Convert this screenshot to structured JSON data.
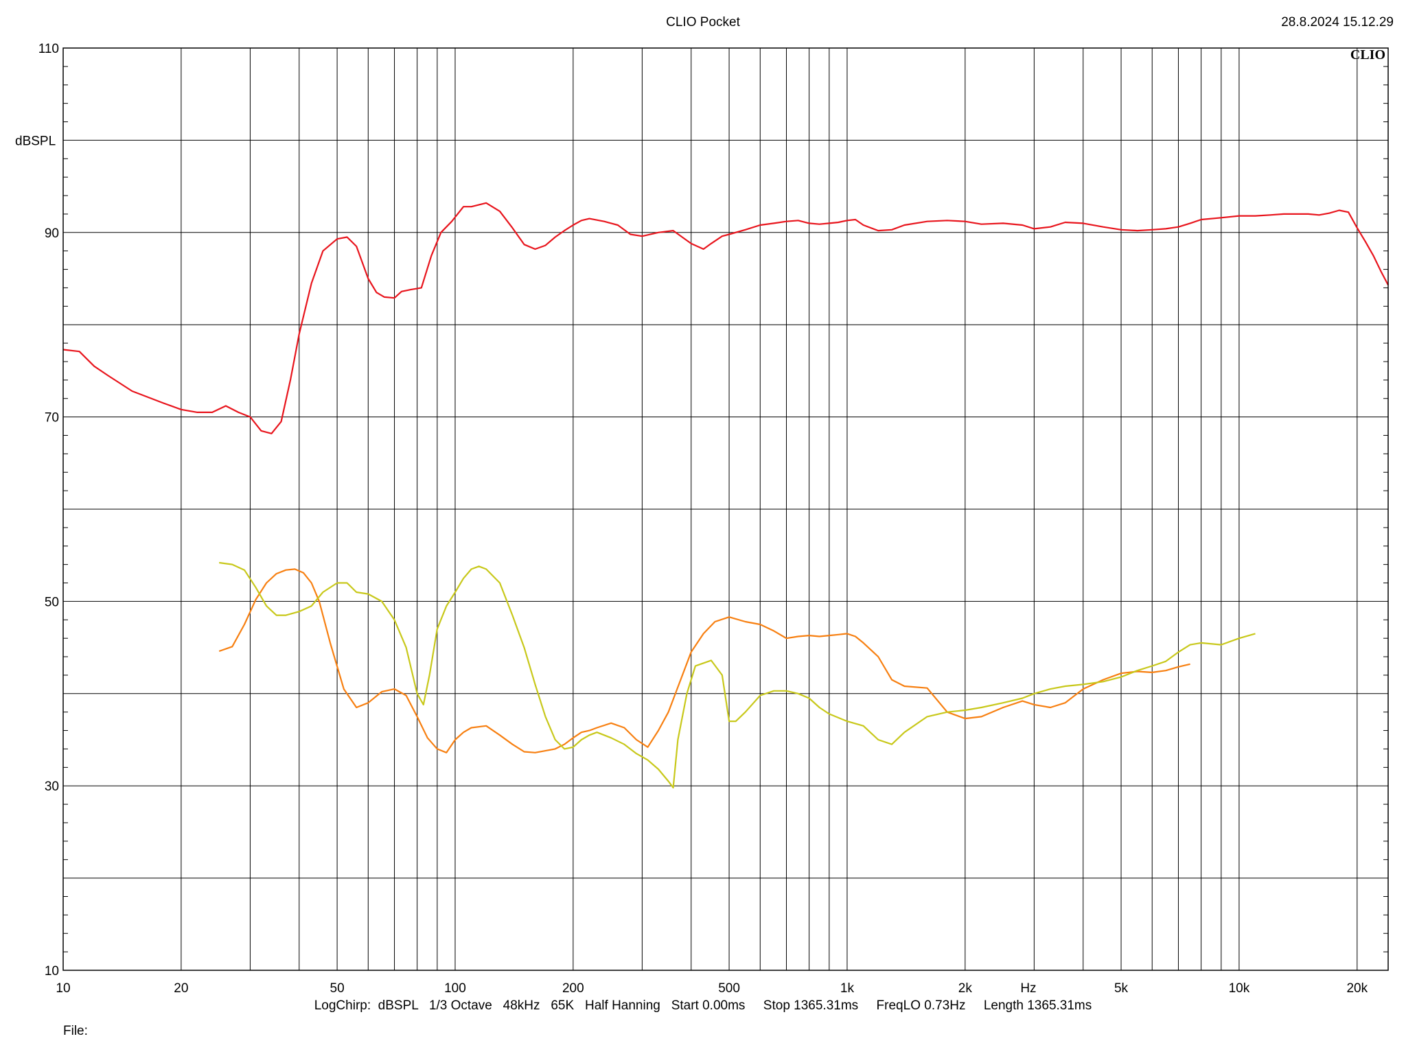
{
  "header": {
    "title": "CLIO Pocket",
    "timestamp": "28.8.2024 15.12.29"
  },
  "footer": {
    "settings": "LogChirp:  dBSPL   1/3 Octave   48kHz   65K   Half Hanning   Start 0.00ms     Stop 1365.31ms     FreqLO 0.73Hz     Length 1365.31ms",
    "file_label": "File:"
  },
  "chart_data": {
    "type": "line",
    "logo": "CLIO",
    "xlabel": "Hz",
    "ylabel": "dBSPL",
    "xscale": "log",
    "xlim": [
      10,
      24000
    ],
    "ylim": [
      10,
      110
    ],
    "xticks": [
      {
        "v": 10,
        "label": "10"
      },
      {
        "v": 20,
        "label": "20"
      },
      {
        "v": 50,
        "label": "50"
      },
      {
        "v": 100,
        "label": "100"
      },
      {
        "v": 200,
        "label": "200"
      },
      {
        "v": 500,
        "label": "500"
      },
      {
        "v": 1000,
        "label": "1k"
      },
      {
        "v": 2000,
        "label": "2k"
      },
      {
        "v": 5000,
        "label": "5k"
      },
      {
        "v": 10000,
        "label": "10k"
      },
      {
        "v": 20000,
        "label": "20k"
      }
    ],
    "yticks": [
      {
        "v": 10,
        "label": "10"
      },
      {
        "v": 30,
        "label": "30"
      },
      {
        "v": 50,
        "label": "50"
      },
      {
        "v": 70,
        "label": "70"
      },
      {
        "v": 90,
        "label": "90"
      },
      {
        "v": 110,
        "label": "110"
      }
    ],
    "grid": true,
    "colors": {
      "red": "#e8141c",
      "orange": "#f77f10",
      "yellow": "#c8c81a"
    },
    "series": [
      {
        "color": "red",
        "x": [
          10,
          11,
          12,
          13,
          15,
          18,
          20,
          22,
          24,
          26,
          28,
          30,
          32,
          34,
          36,
          38,
          40,
          43,
          46,
          50,
          53,
          56,
          60,
          63,
          66,
          70,
          73,
          77,
          82,
          87,
          92,
          98,
          105,
          110,
          120,
          130,
          140,
          150,
          160,
          170,
          180,
          190,
          200,
          210,
          220,
          240,
          260,
          280,
          300,
          330,
          360,
          400,
          430,
          450,
          480,
          500,
          550,
          600,
          650,
          700,
          750,
          800,
          850,
          900,
          950,
          1000,
          1050,
          1100,
          1200,
          1300,
          1400,
          1600,
          1800,
          2000,
          2200,
          2500,
          2800,
          3000,
          3300,
          3600,
          4000,
          4500,
          5000,
          5500,
          6000,
          6500,
          7000,
          7500,
          8000,
          9000,
          10000,
          11000,
          12000,
          13000,
          14000,
          15000,
          16000,
          17000,
          18000,
          19000,
          20000,
          21000,
          22000,
          23000,
          24000
        ],
        "y": [
          77.3,
          77.1,
          75.5,
          74.5,
          72.8,
          71.5,
          70.8,
          70.5,
          70.5,
          71.2,
          70.5,
          70.0,
          68.5,
          68.2,
          69.5,
          74.0,
          79.0,
          84.5,
          88.0,
          89.3,
          89.5,
          88.5,
          85.0,
          83.5,
          83.0,
          82.9,
          83.6,
          83.8,
          84.0,
          87.5,
          90.0,
          91.2,
          92.8,
          92.8,
          93.2,
          92.3,
          90.5,
          88.7,
          88.2,
          88.6,
          89.5,
          90.2,
          90.8,
          91.3,
          91.5,
          91.2,
          90.8,
          89.8,
          89.6,
          90.0,
          90.2,
          88.8,
          88.2,
          88.8,
          89.6,
          89.8,
          90.3,
          90.8,
          91.0,
          91.2,
          91.3,
          91.0,
          90.9,
          91.0,
          91.1,
          91.3,
          91.4,
          90.8,
          90.2,
          90.3,
          90.8,
          91.2,
          91.3,
          91.2,
          90.9,
          91.0,
          90.8,
          90.4,
          90.6,
          91.1,
          91.0,
          90.6,
          90.3,
          90.2,
          90.3,
          90.4,
          90.6,
          91.0,
          91.4,
          91.6,
          91.8,
          91.8,
          91.9,
          92.0,
          92.0,
          92.0,
          91.9,
          92.1,
          92.4,
          92.2,
          90.5,
          89.0,
          87.5,
          85.8,
          84.3
        ]
      },
      {
        "color": "orange",
        "x": [
          25,
          27,
          29,
          31,
          33,
          35,
          37,
          39,
          41,
          43,
          45,
          48,
          52,
          56,
          60,
          65,
          70,
          75,
          80,
          85,
          90,
          95,
          100,
          105,
          110,
          120,
          130,
          140,
          150,
          160,
          170,
          180,
          190,
          200,
          210,
          220,
          230,
          250,
          270,
          290,
          310,
          330,
          350,
          380,
          400,
          430,
          460,
          500,
          550,
          600,
          650,
          700,
          750,
          800,
          850,
          900,
          950,
          1000,
          1050,
          1100,
          1200,
          1300,
          1400,
          1600,
          1800,
          2000,
          2200,
          2500,
          2800,
          3000,
          3300,
          3600,
          4000,
          4500,
          5000,
          5500,
          6000,
          6500,
          7000,
          7500
        ],
        "y": [
          44.6,
          45.1,
          47.5,
          50.2,
          52.0,
          53.0,
          53.4,
          53.5,
          53.1,
          52.0,
          50.0,
          45.5,
          40.5,
          38.5,
          39.0,
          40.2,
          40.5,
          39.8,
          37.5,
          35.2,
          34.0,
          33.6,
          35.0,
          35.8,
          36.3,
          36.5,
          35.5,
          34.5,
          33.7,
          33.6,
          33.8,
          34.0,
          34.5,
          35.2,
          35.8,
          36.0,
          36.3,
          36.8,
          36.3,
          35.0,
          34.2,
          36.0,
          38.0,
          42.0,
          44.5,
          46.5,
          47.8,
          48.3,
          47.8,
          47.5,
          46.8,
          46.0,
          46.2,
          46.3,
          46.2,
          46.3,
          46.4,
          46.5,
          46.2,
          45.5,
          44.0,
          41.5,
          40.8,
          40.6,
          38.0,
          37.3,
          37.5,
          38.5,
          39.2,
          38.8,
          38.5,
          39.0,
          40.5,
          41.5,
          42.2,
          42.4,
          42.3,
          42.5,
          42.9,
          43.2
        ]
      },
      {
        "color": "yellow",
        "x": [
          25,
          27,
          29,
          31,
          33,
          35,
          37,
          40,
          43,
          46,
          50,
          53,
          56,
          60,
          65,
          70,
          75,
          80,
          83,
          86,
          90,
          95,
          100,
          105,
          110,
          115,
          120,
          130,
          140,
          150,
          160,
          170,
          180,
          190,
          200,
          210,
          220,
          230,
          250,
          270,
          290,
          310,
          330,
          350,
          360,
          370,
          390,
          410,
          450,
          480,
          500,
          520,
          550,
          600,
          650,
          700,
          750,
          800,
          850,
          900,
          1000,
          1100,
          1200,
          1300,
          1400,
          1600,
          1800,
          2000,
          2200,
          2500,
          2800,
          3000,
          3300,
          3600,
          4000,
          4500,
          5000,
          5500,
          6000,
          6500,
          7000,
          7500,
          8000,
          9000,
          10000,
          11000
        ],
        "y": [
          54.2,
          54.0,
          53.4,
          51.5,
          49.5,
          48.5,
          48.5,
          48.9,
          49.5,
          51.0,
          52.0,
          52.0,
          51.0,
          50.8,
          50.0,
          48.0,
          45.0,
          40.0,
          38.8,
          42.0,
          47.0,
          49.5,
          51.0,
          52.5,
          53.5,
          53.8,
          53.5,
          52.0,
          48.5,
          45.0,
          41.0,
          37.5,
          35.0,
          34.0,
          34.2,
          35.0,
          35.5,
          35.8,
          35.2,
          34.5,
          33.5,
          32.8,
          31.8,
          30.5,
          29.8,
          35.0,
          40.0,
          43.0,
          43.6,
          42.0,
          37.0,
          37.0,
          38.0,
          39.8,
          40.3,
          40.3,
          40.0,
          39.5,
          38.5,
          37.8,
          37.0,
          36.5,
          35.0,
          34.5,
          35.8,
          37.5,
          38.0,
          38.2,
          38.5,
          39.0,
          39.5,
          40.0,
          40.5,
          40.8,
          41.0,
          41.3,
          41.8,
          42.5,
          43.0,
          43.5,
          44.5,
          45.3,
          45.5,
          45.3,
          46.0,
          46.5
        ]
      }
    ]
  }
}
